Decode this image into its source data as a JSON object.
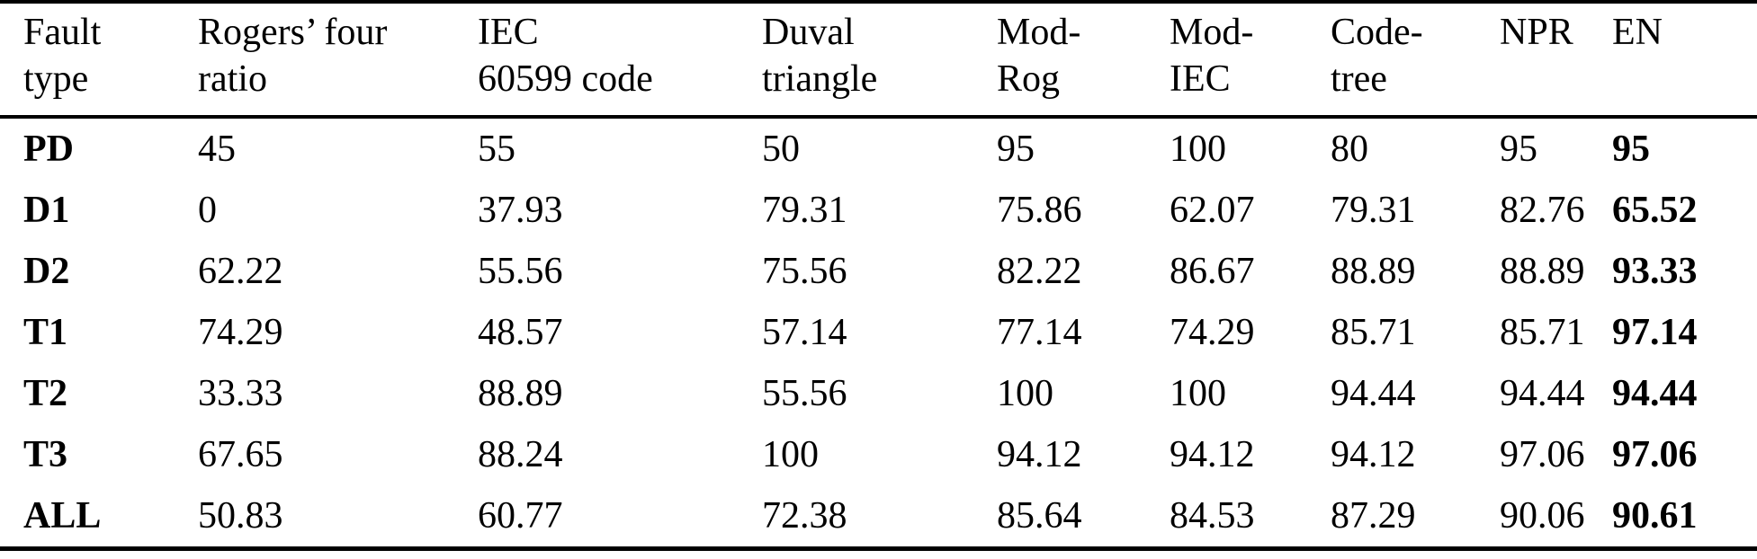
{
  "page": {
    "background_color": "#ffffff",
    "text_color": "#000000"
  },
  "table": {
    "headers": [
      {
        "line1": "Fault",
        "line2": "type"
      },
      {
        "line1": "Rogers’ four",
        "line2": "ratio"
      },
      {
        "line1": "IEC",
        "line2": "60599 code"
      },
      {
        "line1": "Duval",
        "line2": "triangle"
      },
      {
        "line1": "Mod-",
        "line2": "Rog"
      },
      {
        "line1": "Mod-",
        "line2": "IEC"
      },
      {
        "line1": "Code-",
        "line2": "tree"
      },
      {
        "line1": "NPR",
        "line2": ""
      },
      {
        "line1": "EN",
        "line2": ""
      }
    ],
    "rows": [
      {
        "cells": [
          "PD",
          "45",
          "55",
          "50",
          "95",
          "100",
          "80",
          "95",
          "95"
        ]
      },
      {
        "cells": [
          "D1",
          "0",
          "37.93",
          "79.31",
          "75.86",
          "62.07",
          "79.31",
          "82.76",
          "65.52"
        ]
      },
      {
        "cells": [
          "D2",
          "62.22",
          "55.56",
          "75.56",
          "82.22",
          "86.67",
          "88.89",
          "88.89",
          "93.33"
        ]
      },
      {
        "cells": [
          "T1",
          "74.29",
          "48.57",
          "57.14",
          "77.14",
          "74.29",
          "85.71",
          "85.71",
          "97.14"
        ]
      },
      {
        "cells": [
          "T2",
          "33.33",
          "88.89",
          "55.56",
          "100",
          "100",
          "94.44",
          "94.44",
          "94.44"
        ]
      },
      {
        "cells": [
          "T3",
          "67.65",
          "88.24",
          "100",
          "94.12",
          "94.12",
          "94.12",
          "97.06",
          "97.06"
        ]
      },
      {
        "cells": [
          "ALL",
          "50.83",
          "60.77",
          "72.38",
          "85.64",
          "84.53",
          "87.29",
          "90.06",
          "90.61"
        ]
      }
    ]
  },
  "chart_data": {
    "type": "table",
    "columns": [
      "Fault type",
      "Rogers’ four ratio",
      "IEC 60599 code",
      "Duval triangle",
      "Mod-Rog",
      "Mod-IEC",
      "Code-tree",
      "NPR",
      "EN"
    ],
    "rows": [
      [
        "PD",
        45,
        55,
        50,
        95,
        100,
        80,
        95,
        95
      ],
      [
        "D1",
        0,
        37.93,
        79.31,
        75.86,
        62.07,
        79.31,
        82.76,
        65.52
      ],
      [
        "D2",
        62.22,
        55.56,
        75.56,
        82.22,
        86.67,
        88.89,
        88.89,
        93.33
      ],
      [
        "T1",
        74.29,
        48.57,
        57.14,
        77.14,
        74.29,
        85.71,
        85.71,
        97.14
      ],
      [
        "T2",
        33.33,
        88.89,
        55.56,
        100,
        100,
        94.44,
        94.44,
        94.44
      ],
      [
        "T3",
        67.65,
        88.24,
        100,
        94.12,
        94.12,
        94.12,
        97.06,
        97.06
      ],
      [
        "ALL",
        50.83,
        60.77,
        72.38,
        85.64,
        84.53,
        87.29,
        90.06,
        90.61
      ]
    ]
  }
}
